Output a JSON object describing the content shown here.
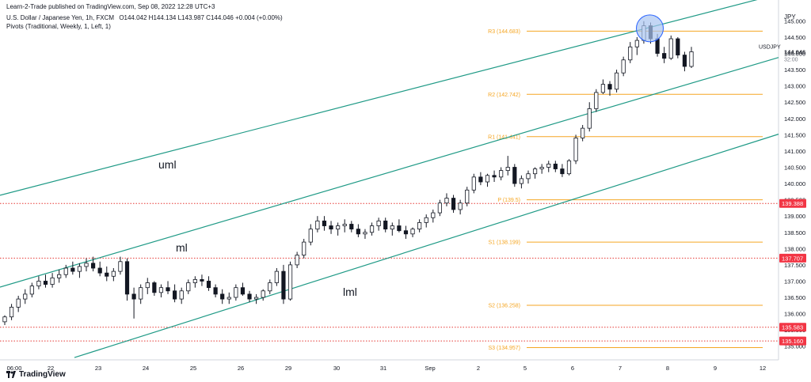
{
  "header": {
    "published": "Learn-2-Trade published on TradingView.com, Sep 08, 2022 12:28 UTC+3",
    "symbol_line": "U.S. Dollar / Japanese Yen, 1h, FXCM",
    "ohlc": "O144.042 H144.134 L143.987 C144.046 +0.004 (+0.00%)",
    "indicator": "Pivots (Traditional, Weekly, 1, Left, 1)"
  },
  "footer": {
    "brand": "TradingView",
    "logo": "tradingview-logo-icon"
  },
  "chart_data": {
    "type": "candlestick",
    "currency": "JPY",
    "symbol_label": "USDJPY",
    "last_price": "144.046",
    "countdown": "32:00",
    "ylim": [
      134.75,
      145.35
    ],
    "y_ticks": [
      "145.000",
      "144.500",
      "144.000",
      "143.500",
      "143.000",
      "142.500",
      "142.000",
      "141.500",
      "141.000",
      "140.500",
      "140.000",
      "139.500",
      "139.000",
      "138.500",
      "138.000",
      "137.500",
      "137.000",
      "136.500",
      "136.000",
      "135.500",
      "135.000"
    ],
    "x_ticks": [
      "06:00",
      "22",
      "23",
      "24",
      "25",
      "26",
      "29",
      "30",
      "31",
      "Sep",
      "2",
      "5",
      "6",
      "7",
      "8",
      "9",
      "12"
    ],
    "pivots": [
      {
        "label": "R3 (144.683)",
        "value": 144.683
      },
      {
        "label": "R2 (142.742)",
        "value": 142.742
      },
      {
        "label": "R1 (141.441)",
        "value": 141.441
      },
      {
        "label": "P (139.5)",
        "value": 139.5
      },
      {
        "label": "S1 (138.199)",
        "value": 138.199
      },
      {
        "label": "S2 (136.258)",
        "value": 136.258
      },
      {
        "label": "S3 (134.957)",
        "value": 134.957
      }
    ],
    "horizontal_levels": [
      {
        "label": "139.388",
        "value": 139.388
      },
      {
        "label": "137.707",
        "value": 137.707
      },
      {
        "label": "135.583",
        "value": 135.583
      },
      {
        "label": "135.160",
        "value": 135.16
      }
    ],
    "channel_lines": [
      {
        "label": "uml",
        "from": {
          "x": "21 00:00",
          "y": 139.45
        },
        "to": {
          "x": "9 00:00",
          "y": 145.32
        }
      },
      {
        "label": "ml",
        "from": {
          "x": "21 00:00",
          "y": 136.6
        },
        "to": {
          "x": "9 00:00",
          "y": 143.3
        }
      },
      {
        "label": "lml",
        "from": {
          "x": "22 12:00",
          "y": 134.65
        },
        "to": {
          "x": "9 00:00",
          "y": 140.9
        }
      }
    ],
    "series": [
      {
        "values": [
          [
            135.75,
            135.95,
            135.65,
            135.9
          ],
          [
            135.9,
            136.3,
            135.8,
            136.2
          ],
          [
            136.2,
            136.55,
            136.05,
            136.45
          ],
          [
            136.45,
            136.75,
            136.3,
            136.6
          ],
          [
            136.6,
            136.95,
            136.5,
            136.85
          ],
          [
            136.85,
            137.15,
            136.75,
            137.0
          ],
          [
            137.0,
            137.2,
            136.8,
            136.9
          ],
          [
            136.9,
            137.25,
            136.8,
            137.1
          ],
          [
            137.1,
            137.35,
            136.95,
            137.2
          ],
          [
            137.2,
            137.5,
            137.1,
            137.4
          ],
          [
            137.4,
            137.6,
            137.2,
            137.3
          ],
          [
            137.3,
            137.55,
            137.1,
            137.45
          ],
          [
            137.45,
            137.7,
            137.3,
            137.55
          ],
          [
            137.55,
            137.75,
            137.3,
            137.4
          ],
          [
            137.4,
            137.6,
            137.15,
            137.25
          ],
          [
            137.25,
            137.45,
            137.0,
            137.15
          ],
          [
            137.15,
            137.4,
            137.0,
            137.3
          ],
          [
            137.3,
            137.75,
            137.2,
            137.6
          ],
          [
            137.6,
            137.7,
            136.4,
            136.6
          ],
          [
            136.6,
            136.8,
            135.85,
            136.45
          ],
          [
            136.45,
            136.9,
            136.3,
            136.8
          ],
          [
            136.8,
            137.1,
            136.6,
            136.95
          ],
          [
            136.95,
            137.0,
            136.55,
            136.65
          ],
          [
            136.65,
            136.9,
            136.5,
            136.8
          ],
          [
            136.8,
            137.0,
            136.6,
            136.7
          ],
          [
            136.7,
            136.9,
            136.35,
            136.45
          ],
          [
            136.45,
            136.8,
            136.3,
            136.7
          ],
          [
            136.7,
            137.05,
            136.6,
            136.95
          ],
          [
            136.95,
            137.15,
            136.8,
            137.05
          ],
          [
            137.05,
            137.2,
            136.85,
            137.0
          ],
          [
            137.0,
            137.15,
            136.7,
            136.8
          ],
          [
            136.8,
            136.9,
            136.5,
            136.6
          ],
          [
            136.6,
            136.75,
            136.3,
            136.45
          ],
          [
            136.45,
            136.65,
            136.3,
            136.5
          ],
          [
            136.5,
            136.9,
            136.4,
            136.8
          ],
          [
            136.8,
            136.95,
            136.55,
            136.6
          ],
          [
            136.6,
            136.7,
            136.35,
            136.45
          ],
          [
            136.45,
            136.6,
            136.3,
            136.5
          ],
          [
            136.5,
            136.75,
            136.4,
            136.7
          ],
          [
            136.7,
            137.05,
            136.6,
            136.95
          ],
          [
            136.95,
            137.4,
            136.85,
            137.3
          ],
          [
            137.3,
            137.5,
            136.3,
            136.45
          ],
          [
            136.45,
            137.6,
            136.4,
            137.5
          ],
          [
            137.5,
            137.9,
            137.4,
            137.8
          ],
          [
            137.8,
            138.3,
            137.7,
            138.2
          ],
          [
            138.2,
            138.75,
            138.1,
            138.6
          ],
          [
            138.6,
            139.0,
            138.5,
            138.85
          ],
          [
            138.85,
            139.0,
            138.55,
            138.7
          ],
          [
            138.7,
            138.85,
            138.45,
            138.6
          ],
          [
            138.6,
            138.8,
            138.4,
            138.7
          ],
          [
            138.7,
            138.9,
            138.5,
            138.75
          ],
          [
            138.75,
            138.85,
            138.5,
            138.6
          ],
          [
            138.6,
            138.75,
            138.35,
            138.45
          ],
          [
            138.45,
            138.6,
            138.3,
            138.5
          ],
          [
            138.5,
            138.8,
            138.4,
            138.7
          ],
          [
            138.7,
            138.95,
            138.55,
            138.85
          ],
          [
            138.85,
            138.95,
            138.5,
            138.6
          ],
          [
            138.6,
            138.8,
            138.4,
            138.7
          ],
          [
            138.7,
            138.9,
            138.5,
            138.55
          ],
          [
            138.55,
            138.7,
            138.3,
            138.45
          ],
          [
            138.45,
            138.65,
            138.35,
            138.6
          ],
          [
            138.6,
            138.9,
            138.5,
            138.8
          ],
          [
            138.8,
            139.05,
            138.65,
            138.95
          ],
          [
            138.95,
            139.2,
            138.8,
            139.1
          ],
          [
            139.1,
            139.5,
            139.0,
            139.4
          ],
          [
            139.4,
            139.7,
            139.3,
            139.55
          ],
          [
            139.55,
            139.65,
            139.1,
            139.2
          ],
          [
            139.2,
            139.5,
            139.05,
            139.4
          ],
          [
            139.4,
            139.9,
            139.3,
            139.8
          ],
          [
            139.8,
            140.3,
            139.7,
            140.2
          ],
          [
            140.2,
            140.35,
            139.95,
            140.05
          ],
          [
            140.05,
            140.3,
            139.9,
            140.25
          ],
          [
            140.25,
            140.4,
            140.05,
            140.2
          ],
          [
            140.2,
            140.5,
            140.1,
            140.4
          ],
          [
            140.4,
            140.85,
            140.25,
            140.5
          ],
          [
            140.5,
            140.6,
            139.9,
            140.0
          ],
          [
            140.0,
            140.25,
            139.85,
            140.15
          ],
          [
            140.15,
            140.4,
            140.0,
            140.3
          ],
          [
            140.3,
            140.5,
            140.15,
            140.45
          ],
          [
            140.45,
            140.6,
            140.3,
            140.5
          ],
          [
            140.5,
            140.7,
            140.35,
            140.6
          ],
          [
            140.6,
            140.7,
            140.35,
            140.45
          ],
          [
            140.45,
            140.6,
            140.2,
            140.3
          ],
          [
            140.3,
            140.75,
            140.25,
            140.7
          ],
          [
            140.7,
            141.5,
            140.6,
            141.4
          ],
          [
            141.4,
            141.8,
            141.3,
            141.7
          ],
          [
            141.7,
            142.5,
            141.6,
            142.3
          ],
          [
            142.3,
            142.9,
            142.2,
            142.8
          ],
          [
            142.8,
            143.2,
            142.75,
            143.05
          ],
          [
            143.05,
            143.15,
            142.7,
            142.9
          ],
          [
            142.9,
            143.5,
            142.8,
            143.4
          ],
          [
            143.4,
            143.9,
            143.3,
            143.8
          ],
          [
            143.8,
            144.35,
            143.7,
            144.2
          ],
          [
            144.2,
            144.5,
            143.95,
            144.4
          ],
          [
            144.4,
            144.99,
            144.3,
            144.85
          ],
          [
            144.85,
            144.95,
            144.3,
            144.45
          ],
          [
            144.45,
            144.6,
            143.9,
            144.0
          ],
          [
            144.0,
            144.2,
            143.7,
            143.85
          ],
          [
            143.85,
            144.55,
            143.8,
            144.45
          ],
          [
            144.45,
            144.5,
            143.85,
            143.95
          ],
          [
            143.95,
            144.05,
            143.45,
            143.6
          ],
          [
            143.6,
            144.2,
            143.55,
            144.05
          ]
        ]
      }
    ]
  },
  "annotations": {
    "circle": {
      "x": "7 15:00",
      "y": 144.77
    }
  },
  "colors": {
    "up": "#26a69a",
    "down": "#131722",
    "candle": "#131722",
    "channel": "#1f9a86",
    "pivot": "#f5a623",
    "level": "#e53935",
    "level_badge": "#f23645",
    "price_badge": "#ffffff",
    "circle_fill": "#a9c4ef",
    "circle_stroke": "#2962ff"
  }
}
